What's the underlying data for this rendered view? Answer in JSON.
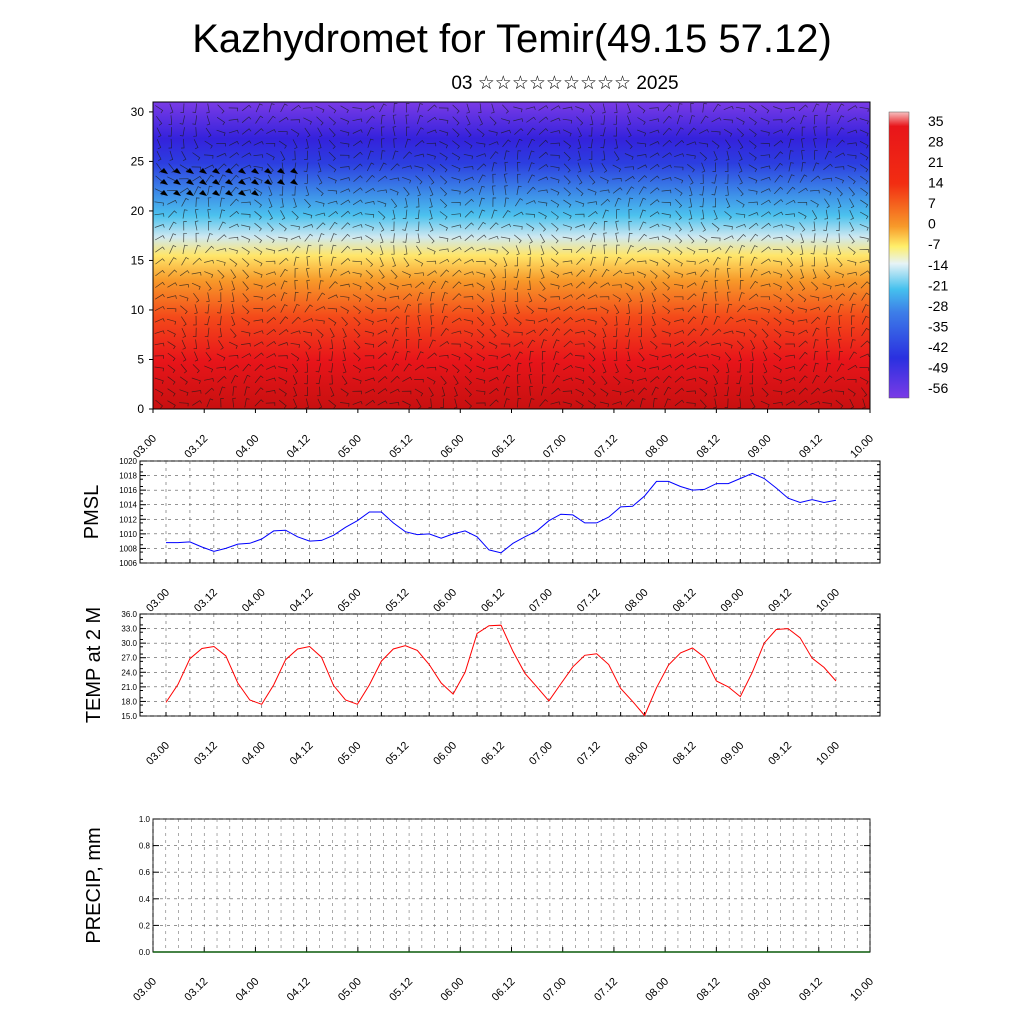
{
  "title": "Kazhydromet for Temir(49.15 57.12)",
  "subtitle": "03 ☆☆☆☆☆☆☆☆☆ 2025",
  "time_labels": [
    "03.00",
    "03.12",
    "04.00",
    "04.12",
    "05.00",
    "05.12",
    "06.00",
    "06.12",
    "07.00",
    "07.12",
    "08.00",
    "08.12",
    "09.00",
    "09.12",
    "10.00"
  ],
  "chart_data": [
    {
      "type": "heatmap",
      "name": "temperature cross-section with wind barbs",
      "ylim": [
        0,
        31
      ],
      "yticks": [
        "0",
        "5",
        "10",
        "15",
        "20",
        "25",
        "30"
      ],
      "colorbar": {
        "labels": [
          "35",
          "28",
          "21",
          "14",
          "7",
          "0",
          "-7",
          "-14",
          "-21",
          "-28",
          "-35",
          "-42",
          "-49",
          "-56"
        ],
        "colors": {
          "warm_top": "#f7b6b6",
          "red": "#e8151a",
          "orange": "#f4861c",
          "yellow": "#fff06a",
          "cyan": "#4cc2ee",
          "blue": "#3f55e6",
          "violet": "#7a3be6"
        }
      },
      "levels": [
        0,
        5,
        10,
        15,
        20,
        25,
        30
      ],
      "temperature_profile": [
        30,
        20,
        6,
        -10,
        -32,
        -52,
        -60
      ]
    },
    {
      "type": "line",
      "ylabel": "PMSL",
      "ylim": [
        1006,
        1020
      ],
      "yticks": [
        "1006",
        "1008",
        "1010",
        "1012",
        "1014",
        "1016",
        "1018",
        "1020"
      ],
      "color": "#0000ff",
      "values": [
        1008.8,
        1008.8,
        1008.9,
        1008.2,
        1007.6,
        1008.0,
        1008.6,
        1008.7,
        1009.3,
        1010.4,
        1010.5,
        1009.6,
        1009.0,
        1009.1,
        1009.8,
        1010.9,
        1011.8,
        1013.0,
        1013.0,
        1011.5,
        1010.3,
        1009.9,
        1010.0,
        1009.4,
        1010.0,
        1010.4,
        1009.6,
        1007.8,
        1007.4,
        1008.7,
        1009.6,
        1010.4,
        1011.8,
        1012.7,
        1012.6,
        1011.5,
        1011.5,
        1012.3,
        1013.7,
        1013.8,
        1015.2,
        1017.2,
        1017.2,
        1016.5,
        1016.0,
        1016.1,
        1016.9,
        1016.9,
        1017.6,
        1018.3,
        1017.6,
        1016.3,
        1014.9,
        1014.3,
        1014.7,
        1014.3,
        1014.6
      ]
    },
    {
      "type": "line",
      "ylabel": "TEMP at 2 M",
      "ylim": [
        15,
        36
      ],
      "yticks": [
        "15.0",
        "18.0",
        "21.0",
        "24.0",
        "27.0",
        "30.0",
        "33.0",
        "36.0"
      ],
      "color": "#ff0000",
      "values": [
        17.8,
        21.5,
        26.8,
        28.9,
        29.3,
        27.4,
        21.8,
        18.3,
        17.4,
        21.4,
        26.6,
        28.8,
        29.3,
        27.1,
        21.3,
        18.3,
        17.4,
        21.4,
        26.3,
        28.8,
        29.5,
        28.5,
        25.6,
        21.8,
        19.5,
        24.0,
        32.0,
        33.6,
        33.7,
        28.3,
        23.8,
        21.0,
        18.1,
        21.6,
        25.1,
        27.5,
        27.8,
        25.6,
        20.7,
        18.0,
        15.1,
        20.8,
        25.5,
        28.0,
        29.0,
        27.1,
        22.2,
        21.0,
        19.0,
        24.0,
        30.0,
        32.8,
        33.0,
        31.1,
        26.9,
        25.0,
        22.2
      ]
    },
    {
      "type": "bar",
      "ylabel": "PRECIP, mm",
      "ylim": [
        0,
        1
      ],
      "yticks": [
        "0.0",
        "0.2",
        "0.4",
        "0.6",
        "0.8",
        "1.0"
      ],
      "values": [
        0,
        0,
        0,
        0,
        0,
        0,
        0,
        0,
        0,
        0,
        0,
        0,
        0,
        0,
        0,
        0,
        0,
        0,
        0,
        0,
        0,
        0,
        0,
        0,
        0,
        0,
        0,
        0,
        0,
        0,
        0,
        0,
        0,
        0,
        0,
        0,
        0,
        0,
        0,
        0,
        0,
        0,
        0,
        0,
        0,
        0,
        0,
        0,
        0,
        0,
        0,
        0,
        0,
        0,
        0,
        0,
        0
      ]
    }
  ]
}
